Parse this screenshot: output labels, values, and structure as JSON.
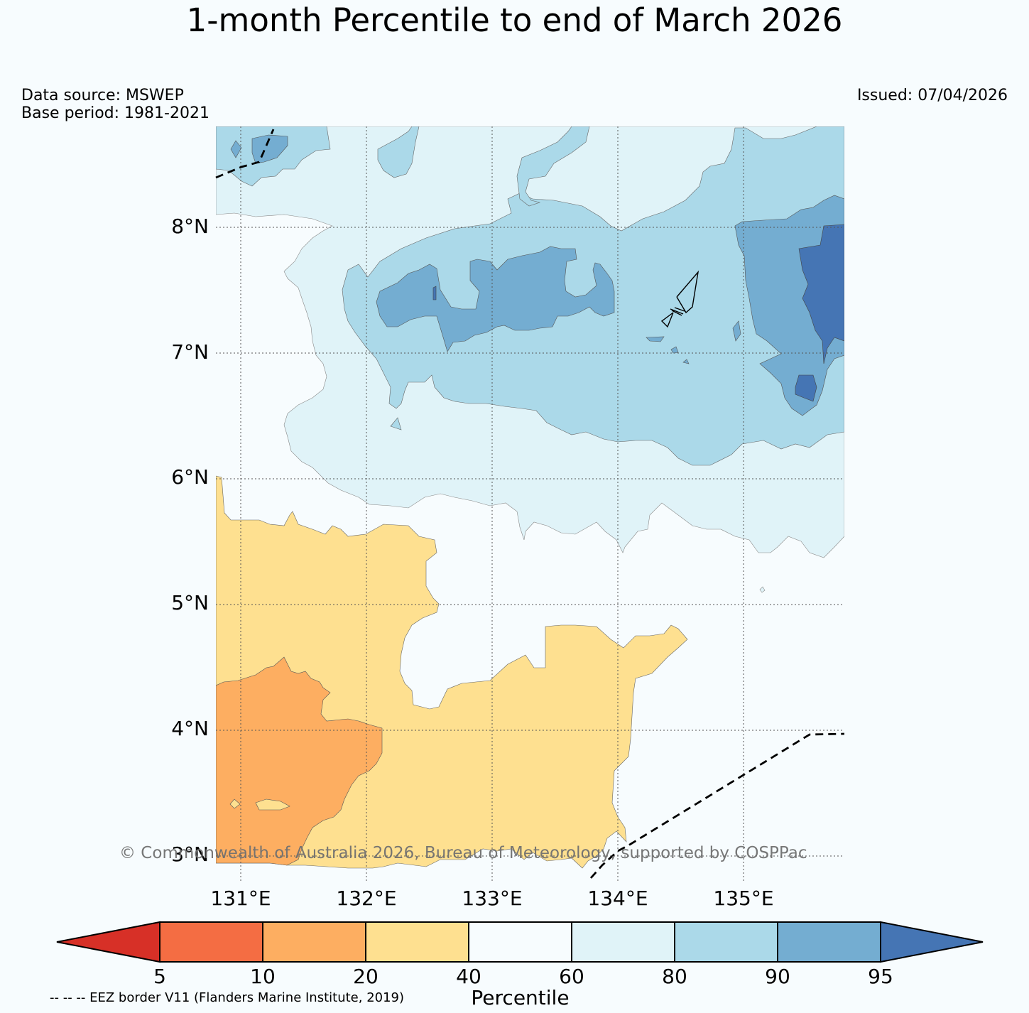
{
  "title": "1-month Percentile to end of March 2026",
  "data_source": "Data source: MSWEP",
  "base_period": "Base period: 1981-2021",
  "issued": "Issued: 07/04/2026",
  "copyright": "© Commonwealth of Australia 2026, Bureau of Meteorology, supported by COSPPac",
  "eez_note": "-- -- -- EEZ border V11 (Flanders Marine Institute, 2019)",
  "lat_labels": [
    "8°N",
    "7°N",
    "6°N",
    "5°N",
    "4°N",
    "3°N"
  ],
  "lon_labels": [
    "131°E",
    "132°E",
    "133°E",
    "134°E",
    "135°E"
  ],
  "colorbar": {
    "title": "Percentile",
    "labels": [
      "5",
      "10",
      "20",
      "40",
      "60",
      "80",
      "90",
      "95"
    ],
    "colors": [
      "#d73027",
      "#f46d43",
      "#fdae61",
      "#fee090",
      "#f7fcfe",
      "#e0f3f8",
      "#abd9e9",
      "#74add1",
      "#4575b4"
    ]
  },
  "colors": {
    "background": "#f7fcfe",
    "band_40_60": "#f7fcfe",
    "band_20_40": "#fee090",
    "band_10_20": "#fdae61",
    "band_60_80": "#e0f3f8",
    "band_80_90": "#abd9e9",
    "band_90_95": "#74add1",
    "band_95_plus": "#4575b4"
  }
}
